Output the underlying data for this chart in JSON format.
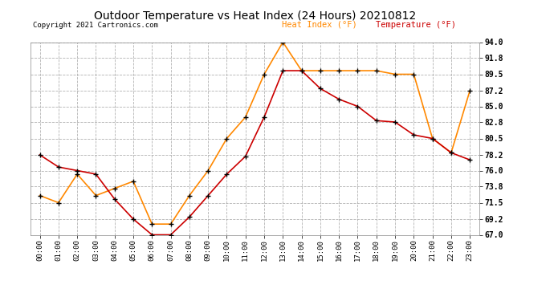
{
  "title": "Outdoor Temperature vs Heat Index (24 Hours) 20210812",
  "copyright": "Copyright 2021 Cartronics.com",
  "legend_heat": "Heat Index (°F)",
  "legend_temp": "Temperature (°F)",
  "hours": [
    0,
    1,
    2,
    3,
    4,
    5,
    6,
    7,
    8,
    9,
    10,
    11,
    12,
    13,
    14,
    15,
    16,
    17,
    18,
    19,
    20,
    21,
    22,
    23
  ],
  "temperature": [
    78.2,
    76.5,
    76.0,
    75.5,
    72.0,
    69.2,
    67.0,
    67.0,
    69.5,
    72.5,
    75.5,
    78.0,
    83.5,
    90.0,
    90.0,
    87.5,
    86.0,
    85.0,
    83.0,
    82.8,
    81.0,
    80.5,
    78.5,
    77.5
  ],
  "heat_index": [
    72.5,
    71.5,
    75.5,
    72.5,
    73.5,
    74.5,
    68.5,
    68.5,
    72.5,
    76.0,
    80.5,
    83.5,
    89.5,
    94.0,
    90.0,
    90.0,
    90.0,
    90.0,
    90.0,
    89.5,
    89.5,
    80.5,
    78.5,
    87.2
  ],
  "ylim": [
    67.0,
    94.0
  ],
  "yticks": [
    67.0,
    69.2,
    71.5,
    73.8,
    76.0,
    78.2,
    80.5,
    82.8,
    85.0,
    87.2,
    89.5,
    91.8,
    94.0
  ],
  "temp_color": "#cc0000",
  "heat_color": "#ff8800",
  "title_fontsize": 10,
  "bg_color": "#ffffff",
  "grid_color": "#aaaaaa",
  "marker": "+",
  "marker_color": "black",
  "marker_size": 5,
  "linewidth": 1.2
}
